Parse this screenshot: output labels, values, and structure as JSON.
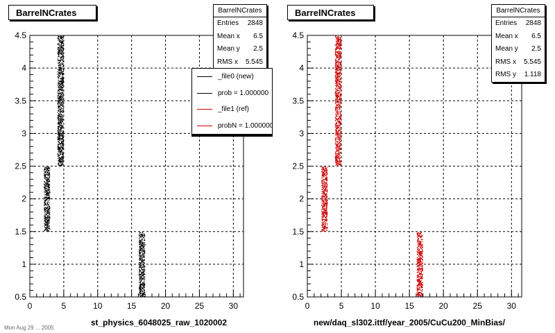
{
  "footer_text": "Mon Aug 29 ... 2005",
  "chart_data": [
    {
      "type": "scatter",
      "title": "BarrelNCrates",
      "xlabel": "st_physics_6048025_raw_1020002",
      "ylabel": "",
      "xlim": [
        0,
        31.5
      ],
      "ylim": [
        0.5,
        4.5
      ],
      "xticks": [
        0,
        5,
        10,
        15,
        20,
        25,
        30
      ],
      "yticks": [
        0.5,
        1,
        1.5,
        2,
        2.5,
        3,
        3.5,
        4,
        4.5
      ],
      "grid": true,
      "point_color": "#000000",
      "series": [
        {
          "x_range": [
            2.0,
            3.0
          ],
          "y_range": [
            1.5,
            2.5
          ]
        },
        {
          "x_range": [
            4.0,
            5.0
          ],
          "y_range": [
            2.5,
            4.5
          ]
        },
        {
          "x_range": [
            16.0,
            17.0
          ],
          "y_range": [
            0.5,
            1.5
          ]
        }
      ],
      "stats": {
        "name": "BarrelNCrates",
        "rows": [
          {
            "label": "Entries",
            "value": "2848"
          },
          {
            "label": "Mean x",
            "value": "6.5"
          },
          {
            "label": "Mean y",
            "value": "2.5"
          },
          {
            "label": "RMS x",
            "value": "5.545"
          }
        ]
      },
      "legend": {
        "placement": "top-right",
        "entries": [
          {
            "label": "_file0 (new)",
            "color": "#000000"
          },
          {
            "label": "prob = 1.000000",
            "color": "#000000"
          },
          {
            "label": "_file1 (ref)",
            "color": "#cc0000"
          },
          {
            "label": "probN = 1.000000",
            "color": "#cc0000"
          }
        ]
      }
    },
    {
      "type": "scatter",
      "title": "BarrelNCrates",
      "xlabel": "new/daq_sl302.ittf/year_2005/CuCu200_MinBias/",
      "ylabel": "",
      "xlim": [
        0,
        31.5
      ],
      "ylim": [
        0.5,
        4.5
      ],
      "xticks": [
        0,
        5,
        10,
        15,
        20,
        25,
        30
      ],
      "yticks": [
        0.5,
        1,
        1.5,
        2,
        2.5,
        3,
        3.5,
        4,
        4.5
      ],
      "grid": true,
      "point_color": "#cc0000",
      "series": [
        {
          "x_range": [
            2.0,
            3.0
          ],
          "y_range": [
            1.5,
            2.5
          ]
        },
        {
          "x_range": [
            4.0,
            5.0
          ],
          "y_range": [
            2.5,
            4.5
          ]
        },
        {
          "x_range": [
            16.0,
            17.0
          ],
          "y_range": [
            0.5,
            1.5
          ]
        }
      ],
      "stats": {
        "name": "BarrelNCrates",
        "rows": [
          {
            "label": "Entries",
            "value": "2848"
          },
          {
            "label": "Mean x",
            "value": "6.5"
          },
          {
            "label": "Mean y",
            "value": "2.5"
          },
          {
            "label": "RMS x",
            "value": "5.545"
          },
          {
            "label": "RMS y",
            "value": "1.118"
          }
        ]
      }
    }
  ]
}
